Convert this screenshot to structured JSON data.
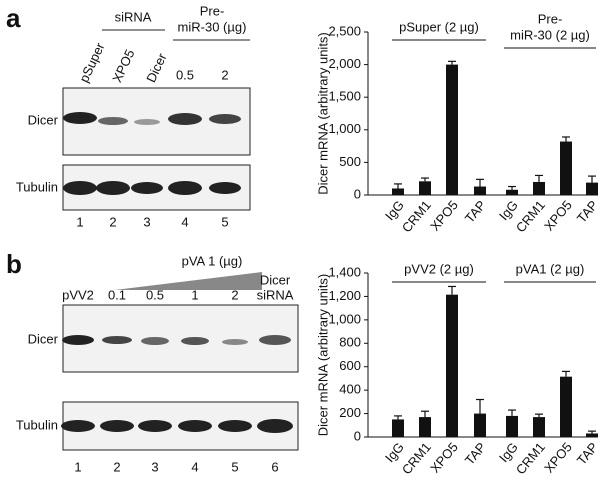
{
  "panel_a": {
    "letter": "a",
    "sirna": "siRNA",
    "pre_mir": [
      "Pre-",
      "miR-30 (µg)"
    ],
    "lanes": [
      "pSuper",
      "XPO5",
      "Dicer",
      "0.5",
      "2"
    ],
    "rows": [
      "Dicer",
      "Tubulin"
    ],
    "lane_numbers": [
      "1",
      "2",
      "3",
      "4",
      "5"
    ]
  },
  "panel_b": {
    "letter": "b",
    "header": "pVA 1 (µg)",
    "lanes": [
      [
        "pVV2"
      ],
      [
        "0.1"
      ],
      [
        "0.5"
      ],
      [
        "1"
      ],
      [
        "2"
      ],
      [
        "Dicer",
        "siRNA"
      ]
    ],
    "rows": [
      "Dicer",
      "Tubulin"
    ],
    "lane_numbers": [
      "1",
      "2",
      "3",
      "4",
      "5",
      "6"
    ]
  },
  "chart_data": [
    {
      "type": "bar",
      "ylabel": "Dicer mRNA (arbitrary units)",
      "color": "#111111",
      "ylim": [
        0,
        2500
      ],
      "yticks": [
        0,
        500,
        {
          "value": 1000,
          "label": "1,000"
        },
        {
          "value": 1500,
          "label": "1,500"
        },
        {
          "value": 2000,
          "label": "2,000"
        },
        {
          "value": 2500,
          "label": "2,500"
        }
      ],
      "groups": [
        {
          "label": [
            "pSuper (2 µg)"
          ],
          "categories": [
            "IgG",
            "CRM1",
            "XPO5",
            "TAP"
          ],
          "values": [
            100,
            210,
            2000,
            130
          ],
          "errors": [
            70,
            50,
            50,
            110
          ]
        },
        {
          "label": [
            "Pre-",
            "miR-30 (2 µg)"
          ],
          "categories": [
            "IgG",
            "CRM1",
            "XPO5",
            "TAP"
          ],
          "values": [
            80,
            200,
            820,
            190
          ],
          "errors": [
            50,
            100,
            70,
            100
          ]
        }
      ]
    },
    {
      "type": "bar",
      "ylabel": "Dicer mRNA (arbitrary units)",
      "color": "#111111",
      "ylim": [
        0,
        1400
      ],
      "yticks": [
        0,
        200,
        400,
        600,
        800,
        {
          "value": 1000,
          "label": "1,000"
        },
        {
          "value": 1200,
          "label": "1,200"
        },
        {
          "value": 1400,
          "label": "1,400"
        }
      ],
      "groups": [
        {
          "label": [
            "pVV2 (2 µg)"
          ],
          "categories": [
            "IgG",
            "CRM1",
            "XPO5",
            "TAP"
          ],
          "values": [
            150,
            170,
            1215,
            200
          ],
          "errors": [
            30,
            50,
            70,
            120
          ]
        },
        {
          "label": [
            "pVA1 (2 µg)"
          ],
          "categories": [
            "IgG",
            "CRM1",
            "XPO5",
            "TAP"
          ],
          "values": [
            180,
            170,
            515,
            30
          ],
          "errors": [
            50,
            25,
            45,
            20
          ]
        }
      ]
    }
  ]
}
